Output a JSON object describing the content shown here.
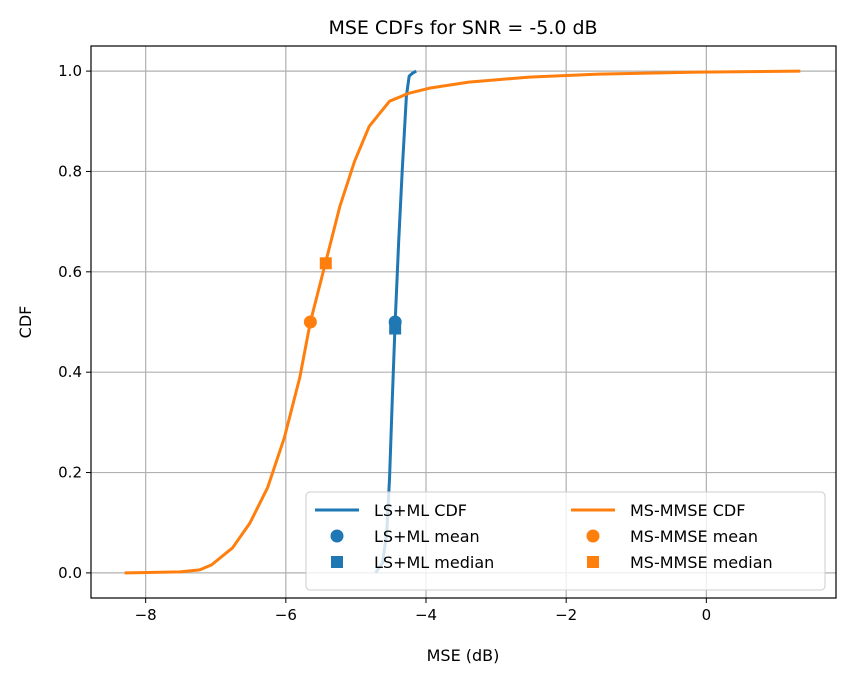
{
  "chart_data": {
    "type": "line",
    "title": "MSE CDFs for SNR = -5.0 dB",
    "xlabel": "MSE (dB)",
    "ylabel": "CDF",
    "xlim": [
      -8.78,
      1.85
    ],
    "ylim": [
      -0.05,
      1.05
    ],
    "xticks": [
      -8,
      -6,
      -4,
      -2,
      0
    ],
    "xtick_labels": [
      "−8",
      "−6",
      "−4",
      "−2",
      "0"
    ],
    "yticks": [
      0,
      0.2,
      0.4,
      0.6,
      0.8,
      1.0
    ],
    "ytick_labels": [
      "0.0",
      "0.2",
      "0.4",
      "0.6",
      "0.8",
      "1.0"
    ],
    "grid": true,
    "legend_placement": "lower-right",
    "series": [
      {
        "name": "LS+ML CDF",
        "color": "#1f77b4",
        "kind": "line",
        "x": [
          -4.72,
          -4.62,
          -4.56,
          -4.52,
          -4.48,
          -4.44,
          -4.39,
          -4.34,
          -4.28,
          -4.24,
          -4.2,
          -4.14
        ],
        "y": [
          0.0,
          0.02,
          0.08,
          0.19,
          0.35,
          0.5,
          0.66,
          0.8,
          0.95,
          0.99,
          0.995,
          1.0
        ]
      },
      {
        "name": "MS-MMSE CDF",
        "color": "#ff7f0e",
        "kind": "line",
        "x": [
          -8.3,
          -7.51,
          -7.23,
          -7.06,
          -6.76,
          -6.51,
          -6.26,
          -6.02,
          -5.8,
          -5.65,
          -5.43,
          -5.23,
          -5.02,
          -4.81,
          -4.52,
          -4.24,
          -3.95,
          -3.39,
          -2.53,
          -1.54,
          -0.11,
          1.34
        ],
        "y": [
          0.0,
          0.002,
          0.006,
          0.016,
          0.05,
          0.1,
          0.17,
          0.27,
          0.39,
          0.5,
          0.62,
          0.73,
          0.82,
          0.89,
          0.94,
          0.956,
          0.966,
          0.978,
          0.988,
          0.994,
          0.998,
          1.0
        ]
      },
      {
        "name": "LS+ML mean",
        "color": "#1f77b4",
        "kind": "circle",
        "x": [
          -4.44
        ],
        "y": [
          0.5
        ]
      },
      {
        "name": "LS+ML median",
        "color": "#1f77b4",
        "kind": "square",
        "x": [
          -4.44
        ],
        "y": [
          0.487
        ]
      },
      {
        "name": "MS-MMSE mean",
        "color": "#ff7f0e",
        "kind": "circle",
        "x": [
          -5.65
        ],
        "y": [
          0.5
        ]
      },
      {
        "name": "MS-MMSE median",
        "color": "#ff7f0e",
        "kind": "square",
        "x": [
          -5.43
        ],
        "y": [
          0.617
        ]
      }
    ],
    "legend_order": [
      0,
      2,
      3,
      1,
      4,
      5
    ]
  }
}
